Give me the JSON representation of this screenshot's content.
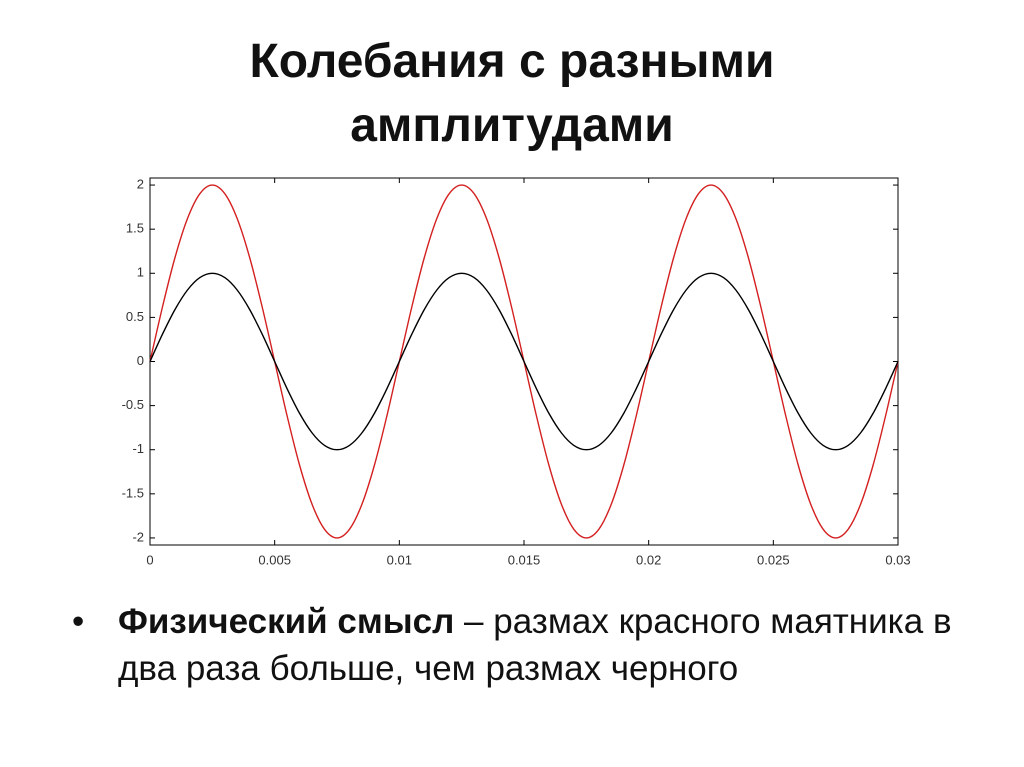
{
  "title": "Колебания с разными амплитудами",
  "chart_data": {
    "type": "line",
    "x": [
      0,
      0.0005,
      0.001,
      0.0015,
      0.002,
      0.0025,
      0.003,
      0.0035,
      0.004,
      0.0045,
      0.005,
      0.0055,
      0.006,
      0.0065,
      0.007,
      0.0075,
      0.008,
      0.0085,
      0.009,
      0.0095,
      0.01,
      0.0105,
      0.011,
      0.0115,
      0.012,
      0.0125,
      0.013,
      0.0135,
      0.014,
      0.0145,
      0.015,
      0.0155,
      0.016,
      0.0165,
      0.017,
      0.0175,
      0.018,
      0.0185,
      0.019,
      0.0195,
      0.02,
      0.0205,
      0.021,
      0.0215,
      0.022,
      0.0225,
      0.023,
      0.0235,
      0.024,
      0.0245,
      0.025,
      0.0255,
      0.026,
      0.0265,
      0.027,
      0.0275,
      0.028,
      0.0285,
      0.029,
      0.0295,
      0.03
    ],
    "series": [
      {
        "color": "#d42020",
        "values": [
          0,
          0.618,
          1.176,
          1.618,
          1.902,
          2,
          1.902,
          1.618,
          1.176,
          0.618,
          0,
          -0.618,
          -1.176,
          -1.618,
          -1.902,
          -2,
          -1.902,
          -1.618,
          -1.176,
          -0.618,
          0,
          0.618,
          1.176,
          1.618,
          1.902,
          2,
          1.902,
          1.618,
          1.176,
          0.618,
          0,
          -0.618,
          -1.176,
          -1.618,
          -1.902,
          -2,
          -1.902,
          -1.618,
          -1.176,
          -0.618,
          0,
          0.618,
          1.176,
          1.618,
          1.902,
          2,
          1.902,
          1.618,
          1.176,
          0.618,
          0,
          -0.618,
          -1.176,
          -1.618,
          -1.902,
          -2,
          -1.902,
          -1.618,
          -1.176,
          -0.618,
          0
        ]
      },
      {
        "color": "#000000",
        "values": [
          0,
          0.309,
          0.588,
          0.809,
          0.951,
          1,
          0.951,
          0.809,
          0.588,
          0.309,
          0,
          -0.309,
          -0.588,
          -0.809,
          -0.951,
          -1,
          -0.951,
          -0.809,
          -0.588,
          -0.309,
          0,
          0.309,
          0.588,
          0.809,
          0.951,
          1,
          0.951,
          0.809,
          0.588,
          0.309,
          0,
          -0.309,
          -0.588,
          -0.809,
          -0.951,
          -1,
          -0.951,
          -0.809,
          -0.588,
          -0.309,
          0,
          0.309,
          0.588,
          0.809,
          0.951,
          1,
          0.951,
          0.809,
          0.588,
          0.309,
          0,
          -0.309,
          -0.588,
          -0.809,
          -0.951,
          -1,
          -0.951,
          -0.809,
          -0.588,
          -0.309,
          0
        ]
      }
    ],
    "xlim": [
      0,
      0.03
    ],
    "xticks": [
      0,
      0.005,
      0.01,
      0.015,
      0.02,
      0.025,
      0.03
    ],
    "ylim": [
      -2.08,
      2.08
    ],
    "yticks": [
      -2,
      -1.5,
      -1,
      -0.5,
      0,
      0.5,
      1,
      1.5,
      2
    ]
  },
  "bullet": {
    "bold": "Физический смысл",
    "text": "– размах красного маятника в два раза больше, чем размах черного"
  }
}
